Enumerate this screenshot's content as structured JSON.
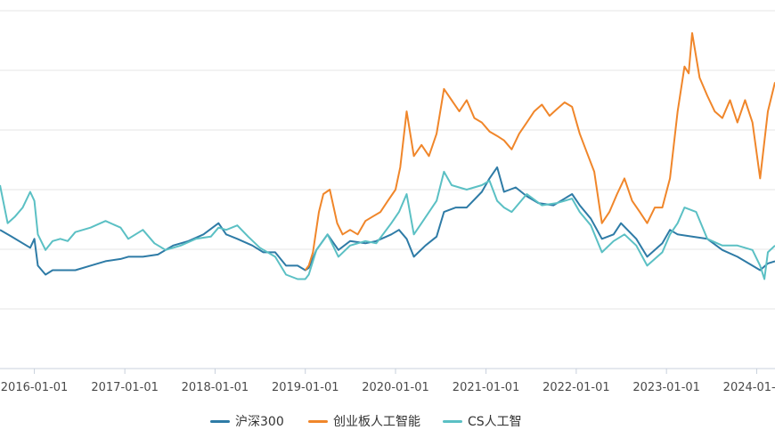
{
  "chart_data": {
    "type": "line",
    "x_ticks": [
      "2016-01-01",
      "2017-01-01",
      "2018-01-01",
      "2019-01-01",
      "2020-01-01",
      "2021-01-01",
      "2022-01-01",
      "2023-01-01",
      "2024-01-01"
    ],
    "x_tick_labels": [
      "2016-01-01",
      "2017-01-01",
      "2018-01-01",
      "2019-01-01",
      "2020-01-01",
      "2021-01-01",
      "2022-01-01",
      "2023-01-01",
      "2024-01-01"
    ],
    "x_range": [
      "2015-08-15",
      "2024-03-15"
    ],
    "y_range": [
      0.4,
      2.0
    ],
    "grid": true,
    "legend_position": "bottom-center",
    "series": [
      {
        "name": "沪深300",
        "color": "#2e7ba6",
        "points": [
          [
            "2015-08-15",
            1.02
          ],
          [
            "2015-10-01",
            0.99
          ],
          [
            "2015-12-15",
            0.94
          ],
          [
            "2016-01-01",
            0.98
          ],
          [
            "2016-01-15",
            0.86
          ],
          [
            "2016-02-15",
            0.82
          ],
          [
            "2016-03-15",
            0.84
          ],
          [
            "2016-05-01",
            0.84
          ],
          [
            "2016-06-15",
            0.84
          ],
          [
            "2016-08-15",
            0.86
          ],
          [
            "2016-10-15",
            0.88
          ],
          [
            "2016-12-15",
            0.89
          ],
          [
            "2017-01-15",
            0.9
          ],
          [
            "2017-03-15",
            0.9
          ],
          [
            "2017-05-15",
            0.91
          ],
          [
            "2017-07-15",
            0.95
          ],
          [
            "2017-09-15",
            0.97
          ],
          [
            "2017-11-15",
            1.0
          ],
          [
            "2018-01-15",
            1.05
          ],
          [
            "2018-02-15",
            1.0
          ],
          [
            "2018-04-01",
            0.98
          ],
          [
            "2018-06-01",
            0.95
          ],
          [
            "2018-07-15",
            0.92
          ],
          [
            "2018-09-01",
            0.92
          ],
          [
            "2018-10-15",
            0.86
          ],
          [
            "2018-12-01",
            0.86
          ],
          [
            "2019-01-01",
            0.84
          ],
          [
            "2019-01-15",
            0.85
          ],
          [
            "2019-02-15",
            0.93
          ],
          [
            "2019-04-01",
            1.0
          ],
          [
            "2019-05-15",
            0.93
          ],
          [
            "2019-07-01",
            0.97
          ],
          [
            "2019-09-01",
            0.96
          ],
          [
            "2019-10-15",
            0.97
          ],
          [
            "2019-12-15",
            1.0
          ],
          [
            "2020-01-15",
            1.02
          ],
          [
            "2020-02-15",
            0.98
          ],
          [
            "2020-03-15",
            0.9
          ],
          [
            "2020-05-01",
            0.95
          ],
          [
            "2020-06-15",
            0.99
          ],
          [
            "2020-07-15",
            1.1
          ],
          [
            "2020-09-01",
            1.12
          ],
          [
            "2020-10-15",
            1.12
          ],
          [
            "2020-12-15",
            1.19
          ],
          [
            "2021-01-15",
            1.25
          ],
          [
            "2021-02-15",
            1.3
          ],
          [
            "2021-03-15",
            1.19
          ],
          [
            "2021-05-01",
            1.21
          ],
          [
            "2021-06-15",
            1.17
          ],
          [
            "2021-08-01",
            1.14
          ],
          [
            "2021-10-01",
            1.13
          ],
          [
            "2021-12-15",
            1.18
          ],
          [
            "2022-01-15",
            1.13
          ],
          [
            "2022-03-01",
            1.07
          ],
          [
            "2022-04-15",
            0.98
          ],
          [
            "2022-06-01",
            1.0
          ],
          [
            "2022-07-01",
            1.05
          ],
          [
            "2022-09-01",
            0.98
          ],
          [
            "2022-10-15",
            0.9
          ],
          [
            "2022-12-15",
            0.96
          ],
          [
            "2023-01-15",
            1.02
          ],
          [
            "2023-02-15",
            1.0
          ],
          [
            "2023-04-15",
            0.99
          ],
          [
            "2023-06-15",
            0.98
          ],
          [
            "2023-08-15",
            0.93
          ],
          [
            "2023-10-15",
            0.9
          ],
          [
            "2023-12-15",
            0.86
          ],
          [
            "2024-01-15",
            0.84
          ],
          [
            "2024-02-15",
            0.87
          ],
          [
            "2024-03-15",
            0.88
          ]
        ]
      },
      {
        "name": "创业板人工智能",
        "color": "#f0862a",
        "points": [
          [
            "2019-01-01",
            0.84
          ],
          [
            "2019-01-15",
            0.86
          ],
          [
            "2019-02-01",
            0.92
          ],
          [
            "2019-02-25",
            1.1
          ],
          [
            "2019-03-15",
            1.18
          ],
          [
            "2019-04-10",
            1.2
          ],
          [
            "2019-05-10",
            1.05
          ],
          [
            "2019-06-01",
            1.0
          ],
          [
            "2019-07-01",
            1.02
          ],
          [
            "2019-08-01",
            1.0
          ],
          [
            "2019-09-01",
            1.06
          ],
          [
            "2019-10-01",
            1.08
          ],
          [
            "2019-11-01",
            1.1
          ],
          [
            "2019-12-01",
            1.15
          ],
          [
            "2020-01-01",
            1.2
          ],
          [
            "2020-01-20",
            1.3
          ],
          [
            "2020-02-15",
            1.55
          ],
          [
            "2020-03-15",
            1.35
          ],
          [
            "2020-04-15",
            1.4
          ],
          [
            "2020-05-15",
            1.35
          ],
          [
            "2020-06-15",
            1.45
          ],
          [
            "2020-07-15",
            1.65
          ],
          [
            "2020-08-15",
            1.6
          ],
          [
            "2020-09-15",
            1.55
          ],
          [
            "2020-10-15",
            1.6
          ],
          [
            "2020-11-15",
            1.52
          ],
          [
            "2020-12-15",
            1.5
          ],
          [
            "2021-01-15",
            1.46
          ],
          [
            "2021-02-15",
            1.44
          ],
          [
            "2021-03-15",
            1.42
          ],
          [
            "2021-04-15",
            1.38
          ],
          [
            "2021-05-15",
            1.45
          ],
          [
            "2021-06-15",
            1.5
          ],
          [
            "2021-07-15",
            1.55
          ],
          [
            "2021-08-15",
            1.58
          ],
          [
            "2021-09-15",
            1.53
          ],
          [
            "2021-10-15",
            1.56
          ],
          [
            "2021-11-15",
            1.59
          ],
          [
            "2021-12-15",
            1.57
          ],
          [
            "2022-01-15",
            1.45
          ],
          [
            "2022-02-15",
            1.36
          ],
          [
            "2022-03-15",
            1.28
          ],
          [
            "2022-04-15",
            1.05
          ],
          [
            "2022-05-15",
            1.1
          ],
          [
            "2022-06-15",
            1.18
          ],
          [
            "2022-07-15",
            1.25
          ],
          [
            "2022-08-15",
            1.15
          ],
          [
            "2022-09-15",
            1.1
          ],
          [
            "2022-10-15",
            1.05
          ],
          [
            "2022-11-15",
            1.12
          ],
          [
            "2022-12-15",
            1.12
          ],
          [
            "2023-01-15",
            1.25
          ],
          [
            "2023-02-15",
            1.55
          ],
          [
            "2023-03-15",
            1.75
          ],
          [
            "2023-04-01",
            1.72
          ],
          [
            "2023-04-15",
            1.9
          ],
          [
            "2023-05-15",
            1.7
          ],
          [
            "2023-06-15",
            1.62
          ],
          [
            "2023-07-15",
            1.55
          ],
          [
            "2023-08-15",
            1.52
          ],
          [
            "2023-09-15",
            1.6
          ],
          [
            "2023-10-15",
            1.5
          ],
          [
            "2023-11-15",
            1.6
          ],
          [
            "2023-12-15",
            1.5
          ],
          [
            "2024-01-15",
            1.25
          ],
          [
            "2024-02-15",
            1.55
          ],
          [
            "2024-03-15",
            1.68
          ]
        ]
      },
      {
        "name": "CS人工智",
        "color": "#5bc0c4",
        "points": [
          [
            "2015-08-15",
            1.22
          ],
          [
            "2015-09-15",
            1.05
          ],
          [
            "2015-10-15",
            1.08
          ],
          [
            "2015-11-15",
            1.12
          ],
          [
            "2015-12-15",
            1.19
          ],
          [
            "2016-01-01",
            1.15
          ],
          [
            "2016-01-15",
            1.0
          ],
          [
            "2016-02-15",
            0.93
          ],
          [
            "2016-03-15",
            0.97
          ],
          [
            "2016-04-15",
            0.98
          ],
          [
            "2016-05-15",
            0.97
          ],
          [
            "2016-06-15",
            1.01
          ],
          [
            "2016-08-15",
            1.03
          ],
          [
            "2016-10-15",
            1.06
          ],
          [
            "2016-12-15",
            1.03
          ],
          [
            "2017-01-15",
            0.98
          ],
          [
            "2017-03-15",
            1.02
          ],
          [
            "2017-05-01",
            0.96
          ],
          [
            "2017-06-15",
            0.93
          ],
          [
            "2017-08-15",
            0.95
          ],
          [
            "2017-10-15",
            0.98
          ],
          [
            "2017-12-15",
            0.99
          ],
          [
            "2018-01-15",
            1.03
          ],
          [
            "2018-02-15",
            1.02
          ],
          [
            "2018-04-01",
            1.04
          ],
          [
            "2018-05-15",
            0.99
          ],
          [
            "2018-07-01",
            0.94
          ],
          [
            "2018-09-01",
            0.9
          ],
          [
            "2018-10-15",
            0.82
          ],
          [
            "2018-12-01",
            0.8
          ],
          [
            "2019-01-01",
            0.8
          ],
          [
            "2019-01-15",
            0.82
          ],
          [
            "2019-02-15",
            0.93
          ],
          [
            "2019-04-01",
            1.0
          ],
          [
            "2019-05-15",
            0.9
          ],
          [
            "2019-07-01",
            0.95
          ],
          [
            "2019-09-01",
            0.97
          ],
          [
            "2019-10-15",
            0.96
          ],
          [
            "2019-12-15",
            1.05
          ],
          [
            "2020-01-15",
            1.1
          ],
          [
            "2020-02-15",
            1.18
          ],
          [
            "2020-03-15",
            1.0
          ],
          [
            "2020-04-15",
            1.05
          ],
          [
            "2020-06-15",
            1.15
          ],
          [
            "2020-07-15",
            1.28
          ],
          [
            "2020-08-15",
            1.22
          ],
          [
            "2020-10-15",
            1.2
          ],
          [
            "2020-12-15",
            1.22
          ],
          [
            "2021-01-15",
            1.24
          ],
          [
            "2021-02-15",
            1.15
          ],
          [
            "2021-03-15",
            1.12
          ],
          [
            "2021-04-15",
            1.1
          ],
          [
            "2021-06-15",
            1.18
          ],
          [
            "2021-08-15",
            1.13
          ],
          [
            "2021-10-15",
            1.14
          ],
          [
            "2021-12-15",
            1.16
          ],
          [
            "2022-01-15",
            1.1
          ],
          [
            "2022-03-01",
            1.04
          ],
          [
            "2022-04-15",
            0.92
          ],
          [
            "2022-06-01",
            0.97
          ],
          [
            "2022-07-15",
            1.0
          ],
          [
            "2022-09-01",
            0.95
          ],
          [
            "2022-10-15",
            0.86
          ],
          [
            "2022-12-15",
            0.92
          ],
          [
            "2023-01-15",
            1.0
          ],
          [
            "2023-02-15",
            1.05
          ],
          [
            "2023-03-15",
            1.12
          ],
          [
            "2023-05-01",
            1.1
          ],
          [
            "2023-06-15",
            0.98
          ],
          [
            "2023-08-15",
            0.95
          ],
          [
            "2023-10-15",
            0.95
          ],
          [
            "2023-12-15",
            0.93
          ],
          [
            "2024-01-15",
            0.86
          ],
          [
            "2024-02-01",
            0.8
          ],
          [
            "2024-02-15",
            0.92
          ],
          [
            "2024-03-15",
            0.95
          ]
        ]
      }
    ]
  }
}
